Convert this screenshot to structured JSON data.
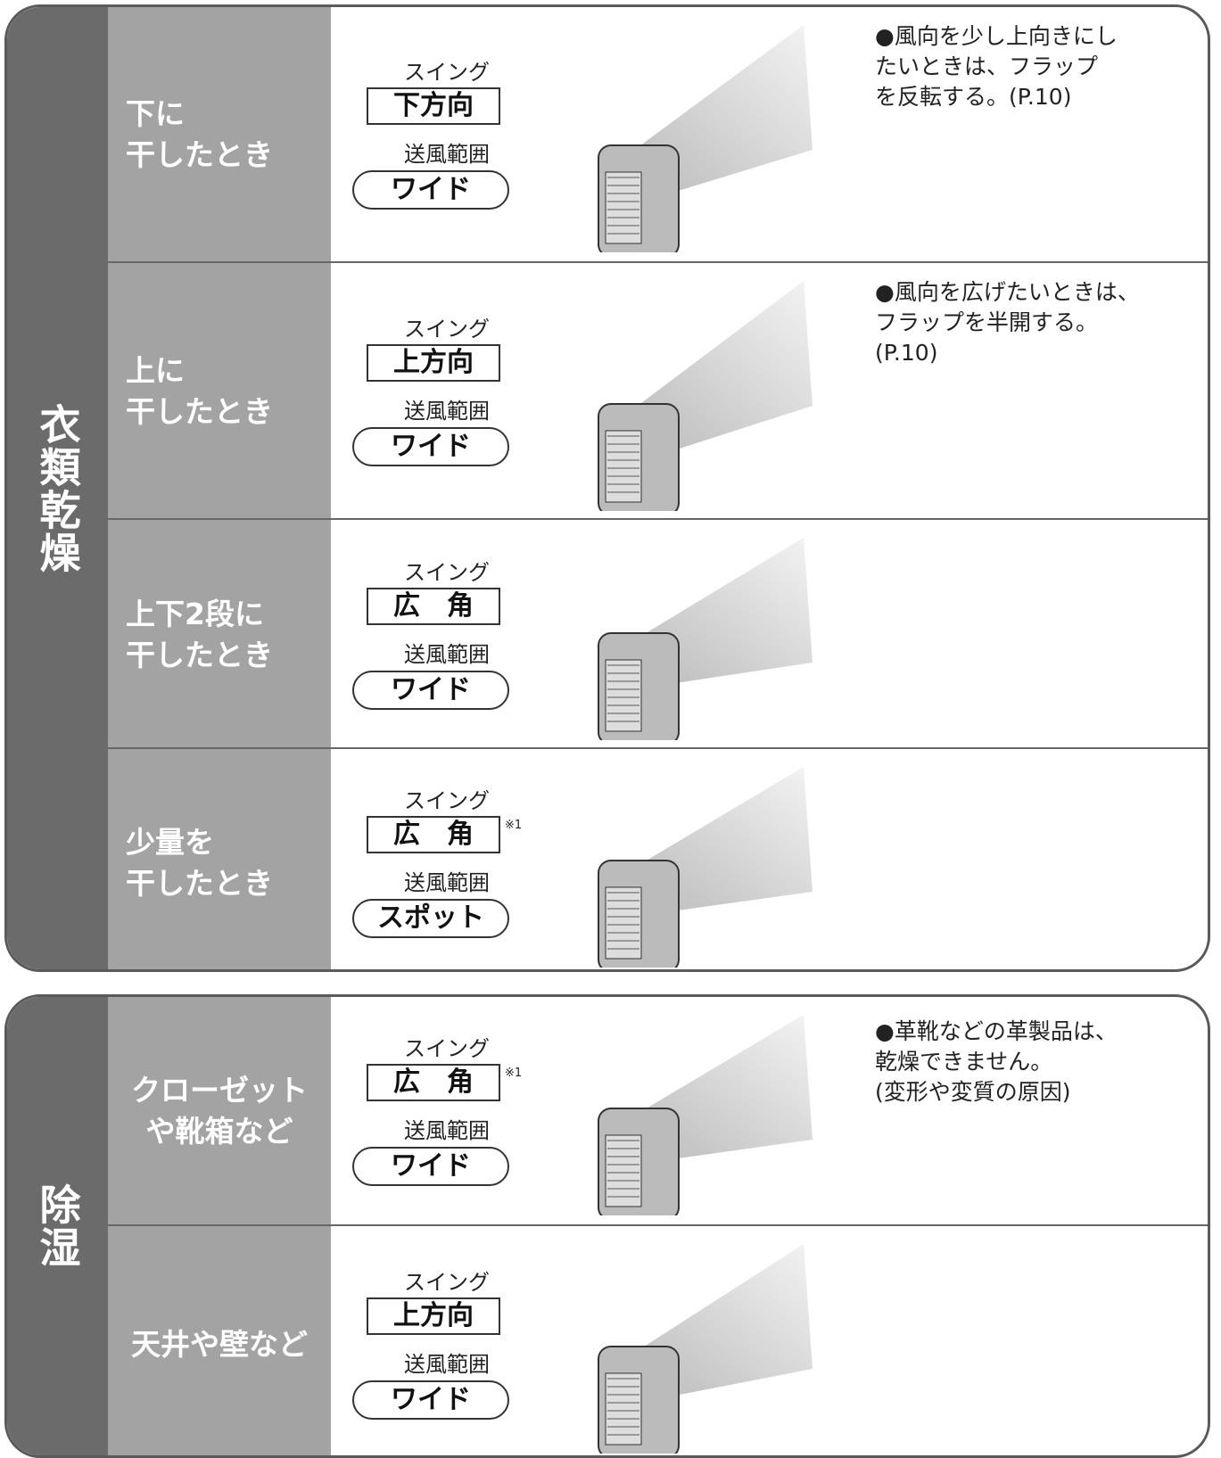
{
  "sections": [
    {
      "title": "衣類乾燥",
      "rows": [
        {
          "label": [
            "下に",
            "干したとき"
          ],
          "swing_label": "スイング",
          "swing": "下方向",
          "range_label": "送風範囲",
          "range": "ワイド",
          "note": [
            "●風向を少し上向きにし",
            "たいときは、フラップ",
            "を反転する。(P.10)"
          ]
        },
        {
          "label": [
            "上に",
            "干したとき"
          ],
          "swing_label": "スイング",
          "swing": "上方向",
          "range_label": "送風範囲",
          "range": "ワイド",
          "note": [
            "●風向を広げたいときは、",
            "フラップを半開する。",
            "(P.10)"
          ]
        },
        {
          "label": [
            "上下2段に",
            "干したとき"
          ],
          "swing_label": "スイング",
          "swing": "広　角",
          "range_label": "送風範囲",
          "range": "ワイド"
        },
        {
          "label": [
            "少量を",
            "干したとき"
          ],
          "swing_label": "スイング",
          "swing": "広　角",
          "footnote": "※1",
          "range_label": "送風範囲",
          "range": "スポット"
        }
      ]
    },
    {
      "title": "除湿",
      "rows": [
        {
          "label": [
            "クローゼット",
            "や靴箱など"
          ],
          "swing_label": "スイング",
          "swing": "広　角",
          "footnote": "※1",
          "range_label": "送風範囲",
          "range": "ワイド",
          "note": [
            "●革靴などの革製品は、",
            "乾燥できません。",
            "(変形や変質の原因)"
          ]
        },
        {
          "label": [
            "天井や壁など"
          ],
          "swing_label": "スイング",
          "swing": "上方向",
          "range_label": "送風範囲",
          "range": "ワイド"
        }
      ]
    }
  ]
}
